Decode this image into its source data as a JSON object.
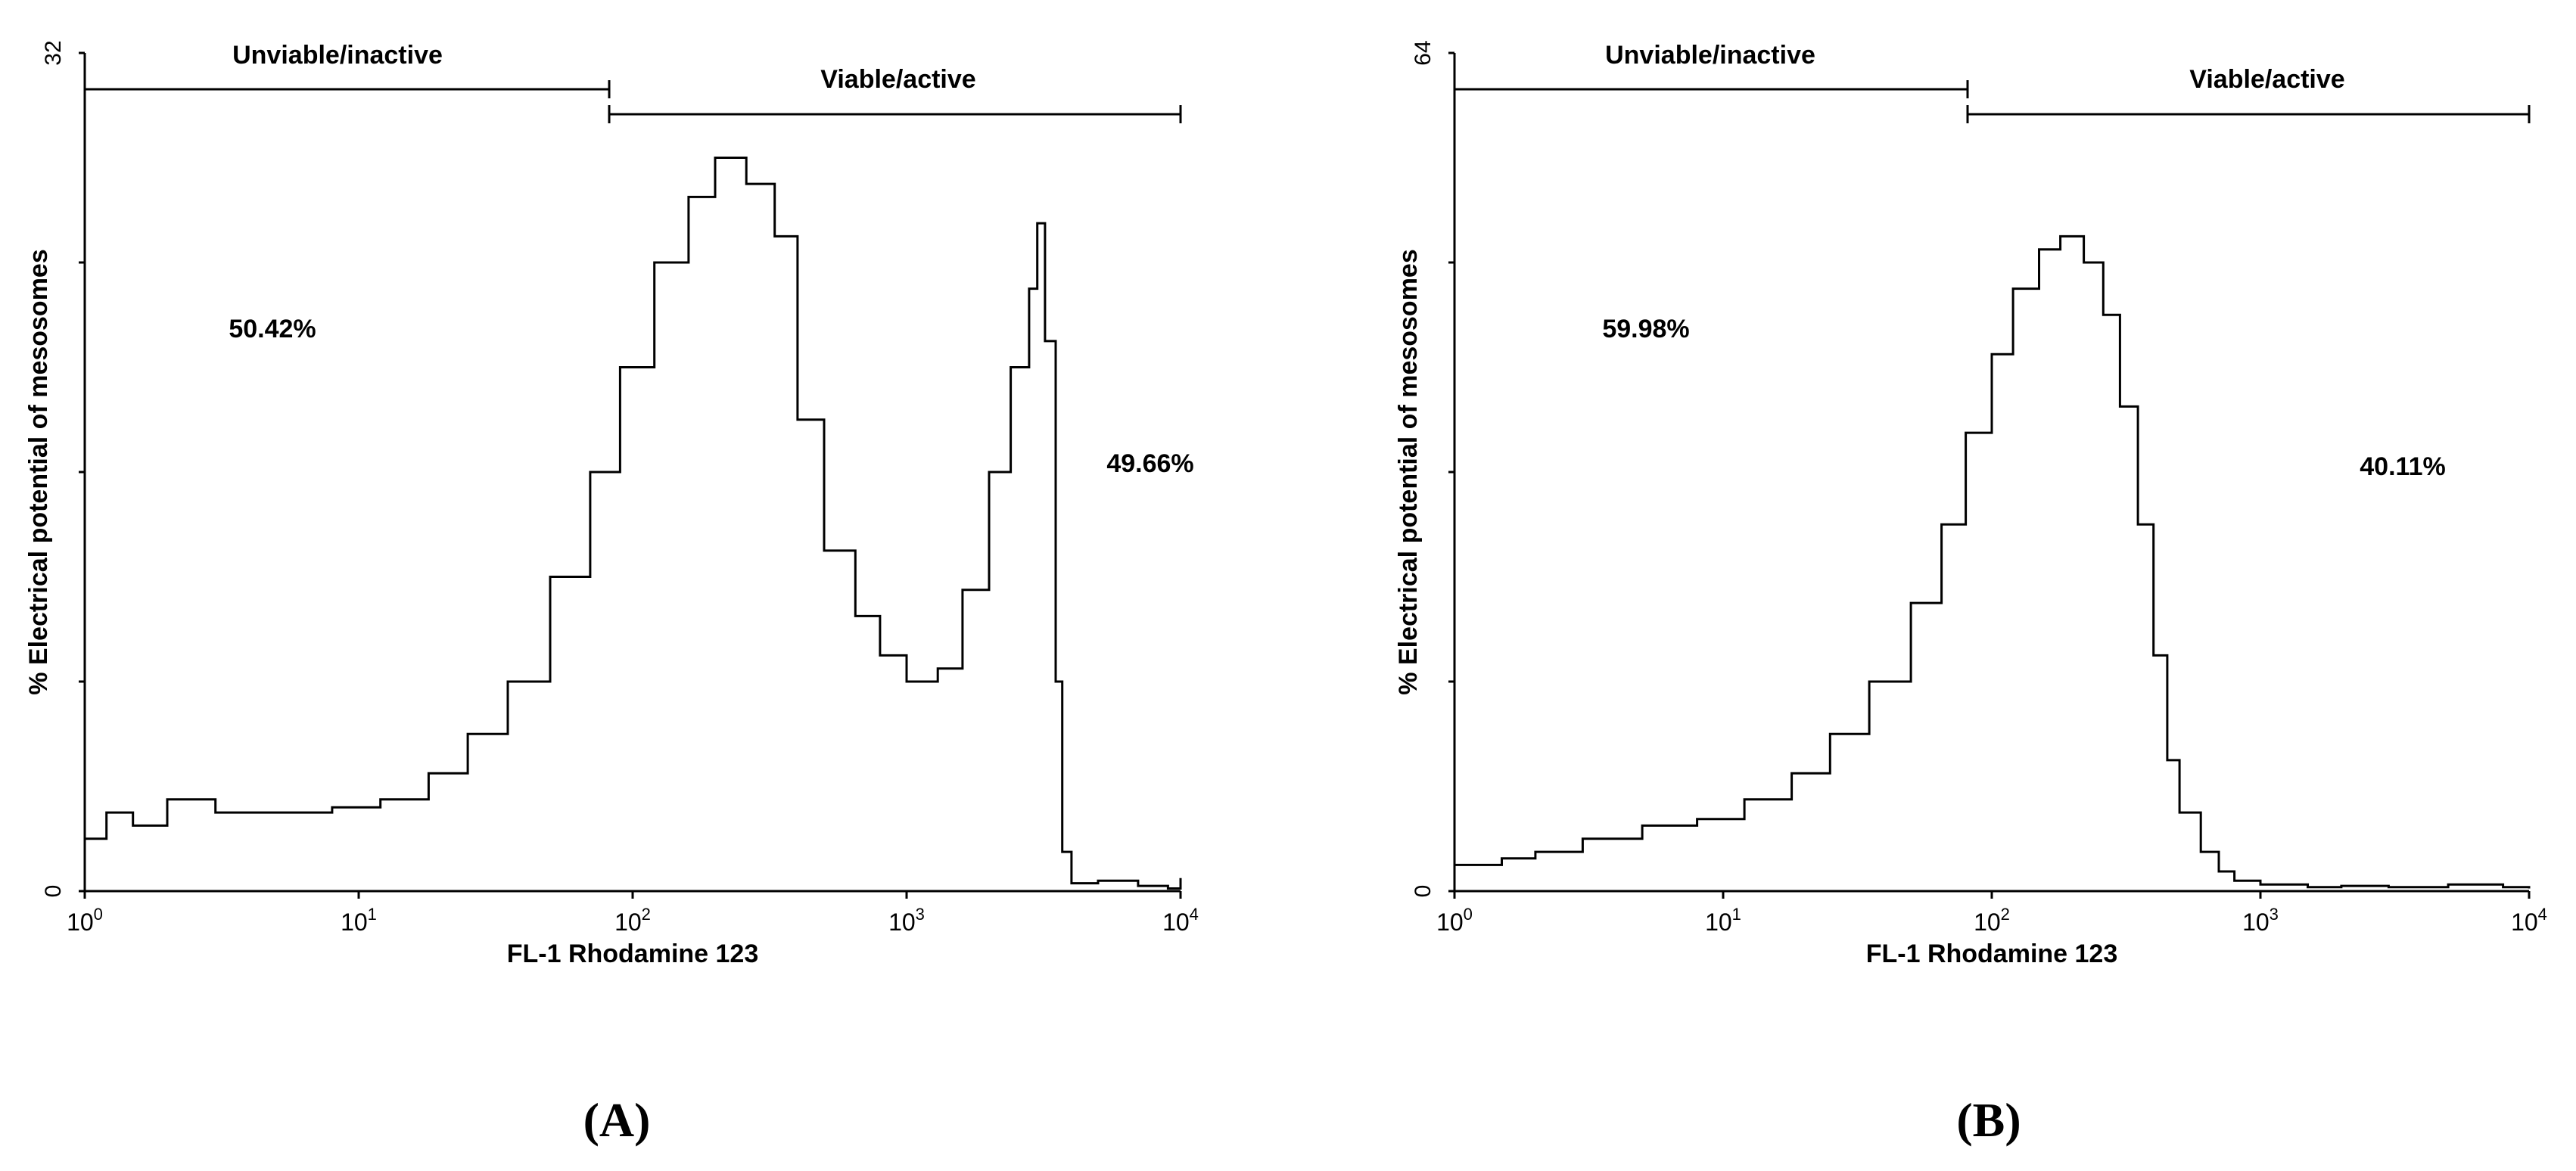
{
  "figure": {
    "panels": [
      {
        "label_text": "A",
        "ytick_labels": [
          "0",
          "32"
        ],
        "xtick_labels": [
          {
            "base": "10",
            "exp": "0"
          },
          {
            "base": "10",
            "exp": "1"
          },
          {
            "base": "10",
            "exp": "2"
          },
          {
            "base": "10",
            "exp": "3"
          },
          {
            "base": "10",
            "exp": "4"
          }
        ],
        "xlabel": "FL-1 Rhodamine 123",
        "ylabel": "% Electrical potential of mesosomes",
        "gate_left_label": "Unviable/inactive",
        "gate_right_label": "Viable/active",
        "pct_left": "50.42%",
        "pct_right": "49.66%"
      },
      {
        "label_text": "B",
        "ytick_labels": [
          "0",
          "64"
        ],
        "xtick_labels": [
          {
            "base": "10",
            "exp": "0"
          },
          {
            "base": "10",
            "exp": "1"
          },
          {
            "base": "10",
            "exp": "2"
          },
          {
            "base": "10",
            "exp": "3"
          },
          {
            "base": "10",
            "exp": "4"
          }
        ],
        "xlabel": "FL-1 Rhodamine 123",
        "ylabel": "% Electrical potential of mesosomes",
        "gate_left_label": "Unviable/inactive",
        "gate_right_label": "Viable/active",
        "pct_left": "59.98%",
        "pct_right": "40.11%"
      }
    ]
  },
  "chart_data": [
    {
      "type": "line",
      "xscale": "log",
      "xlim": [
        1,
        10000
      ],
      "ylim": [
        0,
        32
      ],
      "xlabel": "FL-1 Rhodamine 123",
      "ylabel": "% Electrical potential of mesosomes",
      "gates": [
        {
          "label": "Unviable/inactive",
          "x": [
            1,
            80
          ],
          "level": 30.5,
          "percent": "50.42%"
        },
        {
          "label": "Viable/active",
          "x": [
            80,
            10000
          ],
          "level": 29.3,
          "percent": "49.66%"
        }
      ],
      "series": [
        {
          "x": [
            1,
            1.2,
            1.5,
            2,
            3,
            5,
            8,
            12,
            18,
            25,
            35,
            50,
            70,
            90,
            120,
            160,
            200,
            260,
            330,
            400,
            500,
            650,
            800,
            1000,
            1300,
            1600,
            2000,
            2400,
            2800,
            3000,
            3200,
            3500,
            3700,
            4000,
            5000,
            7000,
            9000,
            10000
          ],
          "values": [
            2,
            3,
            2.5,
            3.5,
            3,
            3,
            3.2,
            3.5,
            4.5,
            6,
            8,
            12,
            16,
            20,
            24,
            26.5,
            28,
            27,
            25,
            18,
            13,
            10.5,
            9,
            8,
            8.5,
            11.5,
            16,
            20,
            23,
            25.5,
            21,
            8,
            1.5,
            0.3,
            0.4,
            0.2,
            0.1,
            0.5
          ]
        }
      ]
    },
    {
      "type": "line",
      "xscale": "log",
      "xlim": [
        1,
        10000
      ],
      "ylim": [
        0,
        64
      ],
      "xlabel": "FL-1 Rhodamine 123",
      "ylabel": "% Electrical potential of mesosomes",
      "gates": [
        {
          "label": "Unviable/inactive",
          "x": [
            1,
            80
          ],
          "level": 61,
          "percent": "59.98%"
        },
        {
          "label": "Viable/active",
          "x": [
            80,
            10000
          ],
          "level": 58.6,
          "percent": "40.11%"
        }
      ],
      "series": [
        {
          "x": [
            1,
            1.5,
            2,
            3,
            5,
            8,
            12,
            18,
            25,
            35,
            50,
            65,
            80,
            100,
            120,
            150,
            180,
            220,
            260,
            300,
            350,
            400,
            450,
            500,
            600,
            700,
            800,
            1000,
            1500,
            2000,
            3000,
            5000,
            8000,
            10000
          ],
          "values": [
            2,
            2.5,
            3,
            4,
            5,
            5.5,
            7,
            9,
            12,
            16,
            22,
            28,
            35,
            41,
            46,
            49,
            50,
            48,
            44,
            37,
            28,
            18,
            10,
            6,
            3,
            1.5,
            0.8,
            0.5,
            0.3,
            0.4,
            0.3,
            0.5,
            0.3,
            0.2
          ]
        }
      ]
    }
  ]
}
